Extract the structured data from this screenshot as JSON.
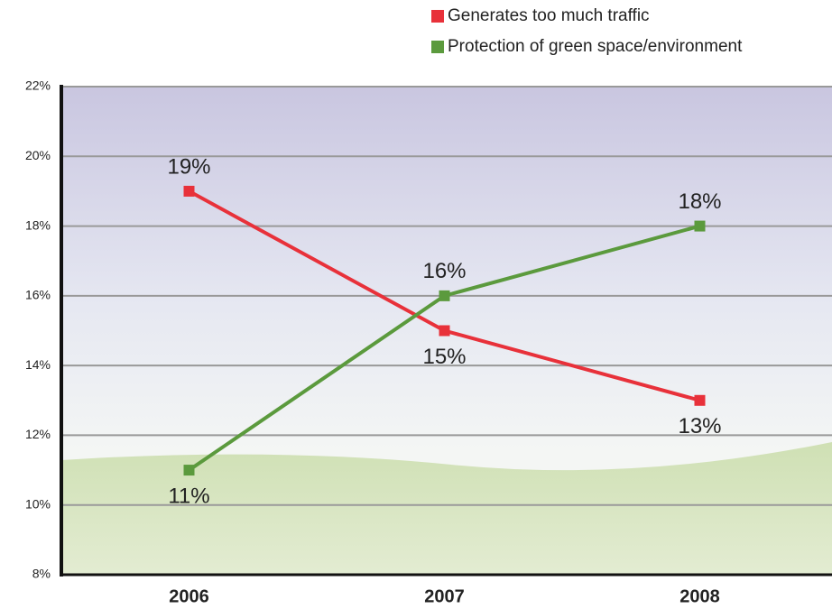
{
  "chart_data": {
    "type": "line",
    "categories": [
      "2006",
      "2007",
      "2008"
    ],
    "series": [
      {
        "name": "Generates too much traffic",
        "color": "#e8313a",
        "values": [
          19,
          15,
          13
        ],
        "value_labels": [
          "19%",
          "15%",
          "13%"
        ]
      },
      {
        "name": "Protection of green space/environment",
        "color": "#5b9a3d",
        "values": [
          11,
          16,
          18
        ],
        "value_labels": [
          "11%",
          "16%",
          "18%"
        ]
      }
    ],
    "ylim": [
      8,
      22
    ],
    "yticks": [
      {
        "value": 8,
        "label": "8%"
      },
      {
        "value": 10,
        "label": "10%"
      },
      {
        "value": 12,
        "label": "12%"
      },
      {
        "value": 14,
        "label": "14%"
      },
      {
        "value": 16,
        "label": "16%"
      },
      {
        "value": 18,
        "label": "18%"
      },
      {
        "value": 20,
        "label": "20%"
      },
      {
        "value": 22,
        "label": "22%"
      }
    ],
    "grid": true
  }
}
